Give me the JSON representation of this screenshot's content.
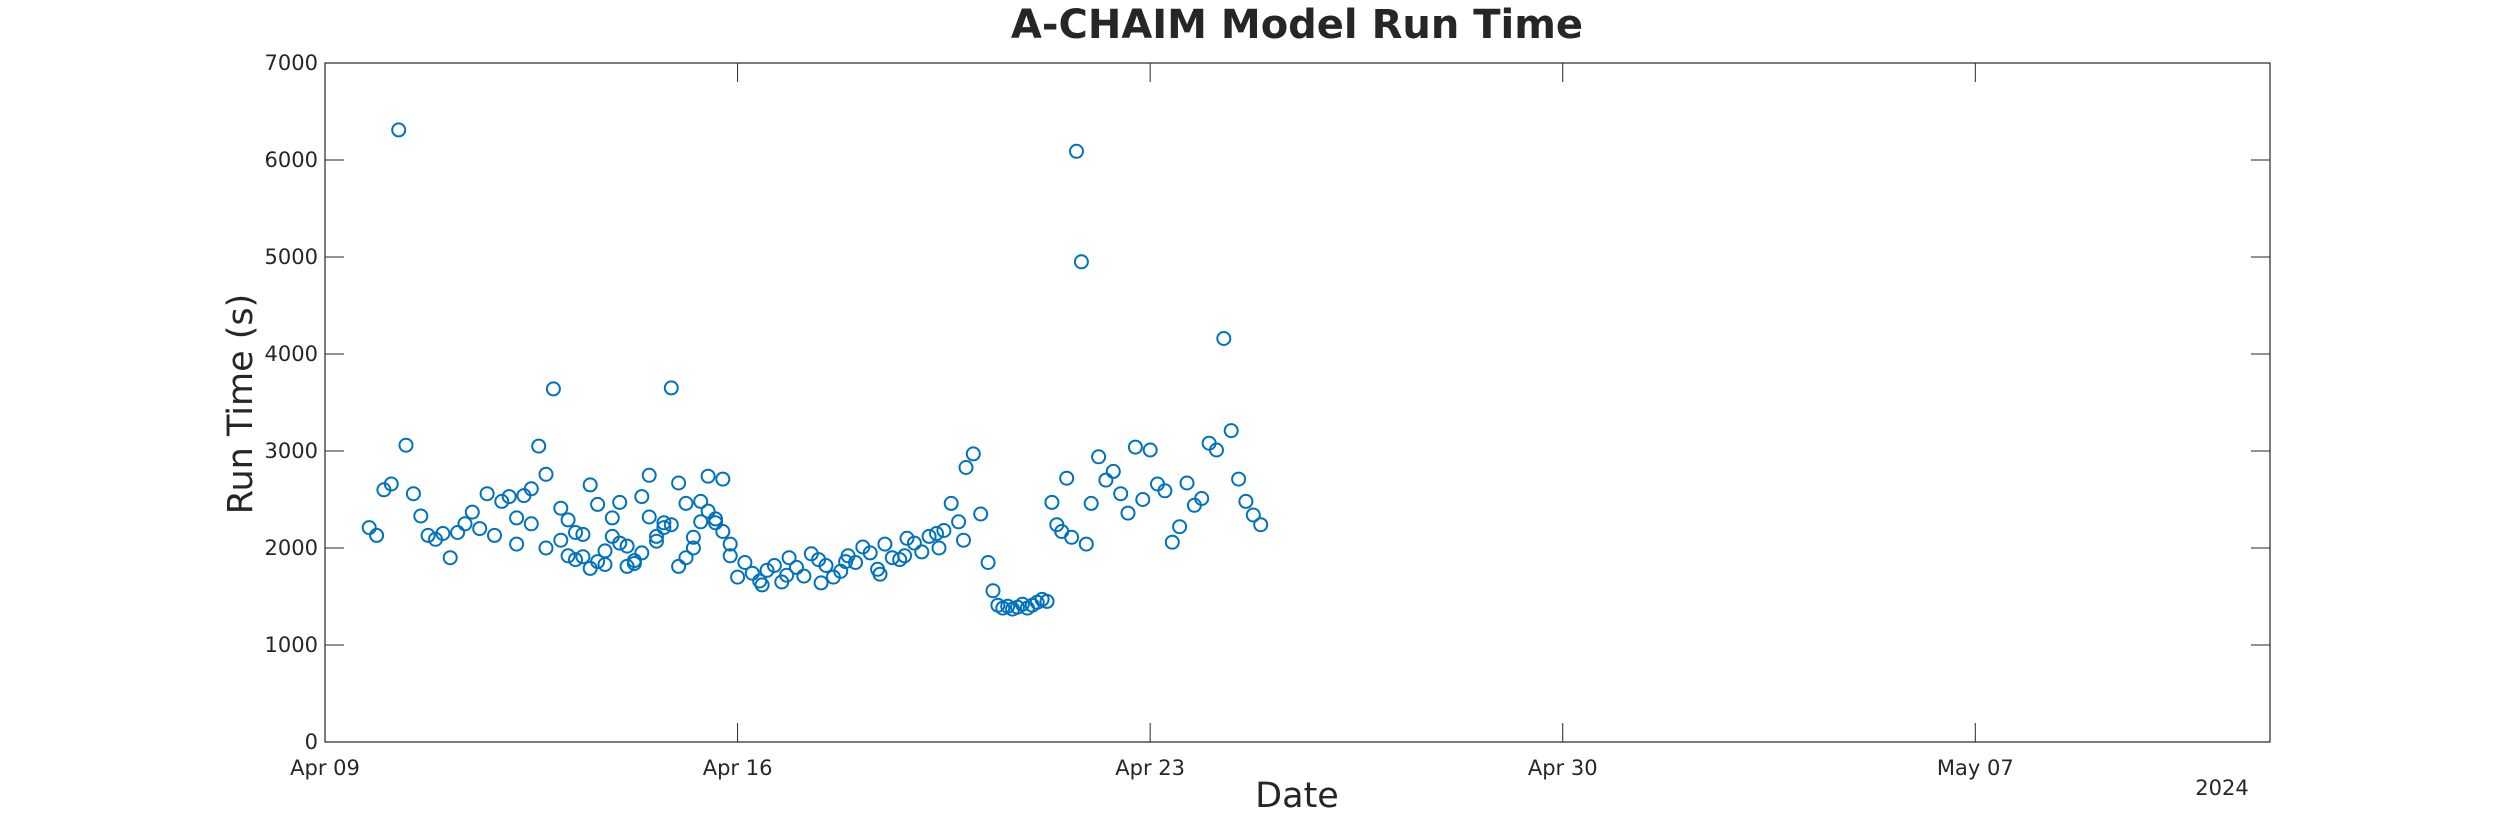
{
  "chart_data": {
    "type": "scatter",
    "title": "A-CHAIM Model Run Time",
    "xlabel": "Date",
    "ylabel": "Run Time (s)",
    "x_axis": {
      "kind": "date",
      "range": [
        "2024-04-09",
        "2024-05-12"
      ],
      "ticks": [
        {
          "date": "2024-04-09",
          "label": "Apr 09"
        },
        {
          "date": "2024-04-16",
          "label": "Apr 16"
        },
        {
          "date": "2024-04-23",
          "label": "Apr 23"
        },
        {
          "date": "2024-04-30",
          "label": "Apr 30"
        },
        {
          "date": "2024-05-07",
          "label": "May 07"
        }
      ],
      "secondary_label": "2024"
    },
    "y_axis": {
      "range": [
        0,
        7000
      ],
      "ticks": [
        0,
        1000,
        2000,
        3000,
        4000,
        5000,
        6000,
        7000
      ]
    },
    "grid": false,
    "marker_color": "#0072BD",
    "points": [
      [
        "2024-04-09 18:00",
        2210
      ],
      [
        "2024-04-09 21:00",
        2130
      ],
      [
        "2024-04-10 00:00",
        2600
      ],
      [
        "2024-04-10 03:00",
        2660
      ],
      [
        "2024-04-10 06:00",
        6310
      ],
      [
        "2024-04-10 09:00",
        3060
      ],
      [
        "2024-04-10 12:00",
        2560
      ],
      [
        "2024-04-10 15:00",
        2330
      ],
      [
        "2024-04-10 18:00",
        2130
      ],
      [
        "2024-04-10 21:00",
        2090
      ],
      [
        "2024-04-11 00:00",
        2150
      ],
      [
        "2024-04-11 03:00",
        1900
      ],
      [
        "2024-04-11 06:00",
        2160
      ],
      [
        "2024-04-11 09:00",
        2250
      ],
      [
        "2024-04-11 12:00",
        2370
      ],
      [
        "2024-04-11 15:00",
        2200
      ],
      [
        "2024-04-11 18:00",
        2560
      ],
      [
        "2024-04-11 21:00",
        2130
      ],
      [
        "2024-04-12 00:00",
        2480
      ],
      [
        "2024-04-12 03:00",
        2530
      ],
      [
        "2024-04-12 06:00",
        2310
      ],
      [
        "2024-04-12 09:00",
        2540
      ],
      [
        "2024-04-12 12:00",
        2610
      ],
      [
        "2024-04-12 15:00",
        3050
      ],
      [
        "2024-04-12 18:00",
        2760
      ],
      [
        "2024-04-12 21:00",
        3640
      ],
      [
        "2024-04-13 00:00",
        2080
      ],
      [
        "2024-04-13 03:00",
        1920
      ],
      [
        "2024-04-13 06:00",
        1880
      ],
      [
        "2024-04-13 09:00",
        1910
      ],
      [
        "2024-04-13 12:00",
        1790
      ],
      [
        "2024-04-13 15:00",
        1860
      ],
      [
        "2024-04-13 18:00",
        1830
      ],
      [
        "2024-04-13 21:00",
        2120
      ],
      [
        "2024-04-14 00:00",
        2050
      ],
      [
        "2024-04-14 03:00",
        1810
      ],
      [
        "2024-04-14 06:00",
        1870
      ],
      [
        "2024-04-14 09:00",
        2530
      ],
      [
        "2024-04-14 12:00",
        2750
      ],
      [
        "2024-04-14 15:00",
        2070
      ],
      [
        "2024-04-14 18:00",
        2260
      ],
      [
        "2024-04-14 21:00",
        3650
      ],
      [
        "2024-04-15 00:00",
        1810
      ],
      [
        "2024-04-15 03:00",
        2460
      ],
      [
        "2024-04-15 06:00",
        2000
      ],
      [
        "2024-04-15 09:00",
        2270
      ],
      [
        "2024-04-15 12:00",
        2380
      ],
      [
        "2024-04-15 15:00",
        2300
      ],
      [
        "2024-04-15 18:00",
        2170
      ],
      [
        "2024-04-15 21:00",
        2040
      ],
      [
        "2024-04-13 00:00",
        2410
      ],
      [
        "2024-04-13 06:00",
        2160
      ],
      [
        "2024-04-13 12:00",
        2650
      ],
      [
        "2024-04-13 18:00",
        1970
      ],
      [
        "2024-04-14 00:00",
        2470
      ],
      [
        "2024-04-14 06:00",
        1840
      ],
      [
        "2024-04-14 12:00",
        2320
      ],
      [
        "2024-04-14 18:00",
        2210
      ],
      [
        "2024-04-15 00:00",
        2670
      ],
      [
        "2024-04-15 06:00",
        2110
      ],
      [
        "2024-04-15 12:00",
        2740
      ],
      [
        "2024-04-15 18:00",
        2710
      ],
      [
        "2024-04-12 06:00",
        2040
      ],
      [
        "2024-04-12 12:00",
        2250
      ],
      [
        "2024-04-12 18:00",
        2000
      ],
      [
        "2024-04-13 03:00",
        2290
      ],
      [
        "2024-04-13 09:00",
        2140
      ],
      [
        "2024-04-13 15:00",
        2450
      ],
      [
        "2024-04-13 21:00",
        2310
      ],
      [
        "2024-04-14 03:00",
        2020
      ],
      [
        "2024-04-14 09:00",
        1950
      ],
      [
        "2024-04-14 15:00",
        2120
      ],
      [
        "2024-04-14 21:00",
        2240
      ],
      [
        "2024-04-15 03:00",
        1900
      ],
      [
        "2024-04-15 09:00",
        2480
      ],
      [
        "2024-04-15 15:00",
        2260
      ],
      [
        "2024-04-15 21:00",
        1920
      ],
      [
        "2024-04-16 00:00",
        1700
      ],
      [
        "2024-04-16 03:00",
        1850
      ],
      [
        "2024-04-16 06:00",
        1740
      ],
      [
        "2024-04-16 09:00",
        1660
      ],
      [
        "2024-04-16 12:00",
        1770
      ],
      [
        "2024-04-16 15:00",
        1820
      ],
      [
        "2024-04-16 18:00",
        1650
      ],
      [
        "2024-04-16 21:00",
        1900
      ],
      [
        "2024-04-17 00:00",
        1800
      ],
      [
        "2024-04-17 03:00",
        1710
      ],
      [
        "2024-04-17 06:00",
        1940
      ],
      [
        "2024-04-17 09:00",
        1880
      ],
      [
        "2024-04-17 12:00",
        1820
      ],
      [
        "2024-04-17 15:00",
        1700
      ],
      [
        "2024-04-17 18:00",
        1760
      ],
      [
        "2024-04-17 21:00",
        1920
      ],
      [
        "2024-04-18 00:00",
        1850
      ],
      [
        "2024-04-18 03:00",
        2010
      ],
      [
        "2024-04-18 06:00",
        1950
      ],
      [
        "2024-04-18 09:00",
        1780
      ],
      [
        "2024-04-18 12:00",
        2040
      ],
      [
        "2024-04-18 15:00",
        1900
      ],
      [
        "2024-04-18 18:00",
        1880
      ],
      [
        "2024-04-18 21:00",
        2100
      ],
      [
        "2024-04-19 00:00",
        2050
      ],
      [
        "2024-04-19 03:00",
        1960
      ],
      [
        "2024-04-19 06:00",
        2120
      ],
      [
        "2024-04-19 09:00",
        2150
      ],
      [
        "2024-04-19 12:00",
        2180
      ],
      [
        "2024-04-19 15:00",
        2460
      ],
      [
        "2024-04-19 18:00",
        2270
      ],
      [
        "2024-04-19 21:00",
        2830
      ],
      [
        "2024-04-16 10:00",
        1620
      ],
      [
        "2024-04-16 20:00",
        1720
      ],
      [
        "2024-04-17 10:00",
        1640
      ],
      [
        "2024-04-17 20:00",
        1860
      ],
      [
        "2024-04-18 10:00",
        1730
      ],
      [
        "2024-04-18 20:00",
        1920
      ],
      [
        "2024-04-19 10:00",
        2000
      ],
      [
        "2024-04-19 20:00",
        2080
      ],
      [
        "2024-04-20 00:00",
        2970
      ],
      [
        "2024-04-20 03:00",
        2350
      ],
      [
        "2024-04-20 06:00",
        1850
      ],
      [
        "2024-04-20 08:00",
        1560
      ],
      [
        "2024-04-20 10:00",
        1410
      ],
      [
        "2024-04-20 12:00",
        1380
      ],
      [
        "2024-04-20 14:00",
        1400
      ],
      [
        "2024-04-20 16:00",
        1370
      ],
      [
        "2024-04-20 18:00",
        1390
      ],
      [
        "2024-04-20 20:00",
        1420
      ],
      [
        "2024-04-20 22:00",
        1380
      ],
      [
        "2024-04-21 00:00",
        1410
      ],
      [
        "2024-04-21 02:00",
        1440
      ],
      [
        "2024-04-21 04:00",
        1470
      ],
      [
        "2024-04-21 06:00",
        1450
      ],
      [
        "2024-04-21 08:00",
        2470
      ],
      [
        "2024-04-21 10:00",
        2240
      ],
      [
        "2024-04-21 12:00",
        2170
      ],
      [
        "2024-04-21 14:00",
        2720
      ],
      [
        "2024-04-21 16:00",
        2110
      ],
      [
        "2024-04-21 18:00",
        6090
      ],
      [
        "2024-04-21 20:00",
        4950
      ],
      [
        "2024-04-21 22:00",
        2040
      ],
      [
        "2024-04-22 00:00",
        2460
      ],
      [
        "2024-04-22 03:00",
        2940
      ],
      [
        "2024-04-22 06:00",
        2700
      ],
      [
        "2024-04-22 09:00",
        2790
      ],
      [
        "2024-04-22 12:00",
        2560
      ],
      [
        "2024-04-22 15:00",
        2360
      ],
      [
        "2024-04-22 18:00",
        3040
      ],
      [
        "2024-04-22 21:00",
        2500
      ],
      [
        "2024-04-23 00:00",
        3010
      ],
      [
        "2024-04-23 03:00",
        2660
      ],
      [
        "2024-04-23 06:00",
        2590
      ],
      [
        "2024-04-23 09:00",
        2060
      ],
      [
        "2024-04-23 12:00",
        2220
      ],
      [
        "2024-04-23 15:00",
        2670
      ],
      [
        "2024-04-23 18:00",
        2440
      ],
      [
        "2024-04-23 21:00",
        2510
      ],
      [
        "2024-04-24 00:00",
        3080
      ],
      [
        "2024-04-24 03:00",
        3010
      ],
      [
        "2024-04-24 06:00",
        4160
      ],
      [
        "2024-04-24 09:00",
        3210
      ],
      [
        "2024-04-24 12:00",
        2710
      ],
      [
        "2024-04-24 15:00",
        2480
      ],
      [
        "2024-04-24 18:00",
        2340
      ],
      [
        "2024-04-24 21:00",
        2240
      ]
    ]
  }
}
